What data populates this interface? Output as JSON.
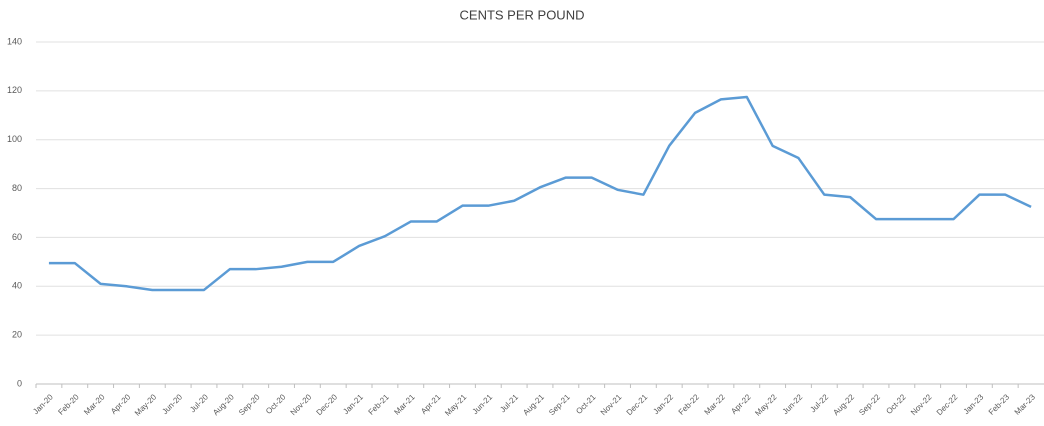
{
  "chart_data": {
    "type": "line",
    "title": "CENTS PER POUND",
    "categories": [
      "Jan-20",
      "Feb-20",
      "Mar-20",
      "Apr-20",
      "May-20",
      "Jun-20",
      "Jul-20",
      "Aug-20",
      "Sep-20",
      "Oct-20",
      "Nov-20",
      "Dec-20",
      "Jan-21",
      "Feb-21",
      "Mar-21",
      "Apr-21",
      "May-21",
      "Jun-21",
      "Jul-21",
      "Aug-21",
      "Sep-21",
      "Oct-21",
      "Nov-21",
      "Dec-21",
      "Jan-22",
      "Feb-22",
      "Mar-22",
      "Apr-22",
      "May-22",
      "Jun-22",
      "Jul-22",
      "Aug-22",
      "Sep-22",
      "Oct-22",
      "Nov-22",
      "Dec-22",
      "Jan-23",
      "Feb-23",
      "Mar-23"
    ],
    "values": [
      49.5,
      49.5,
      41,
      40,
      38.5,
      38.5,
      38.5,
      47,
      47,
      48,
      50,
      50,
      56.5,
      60.5,
      66.5,
      66.5,
      73,
      73,
      75,
      80.5,
      84.5,
      84.5,
      79.5,
      77.5,
      97.5,
      111,
      116.5,
      117.5,
      97.5,
      92.5,
      77.5,
      76.5,
      67.5,
      67.5,
      67.5,
      67.5,
      77.5,
      77.5,
      72.5
    ],
    "color": "#5b9bd5",
    "ylim": [
      0,
      140
    ],
    "yticks": [
      0,
      20,
      40,
      60,
      80,
      100,
      120,
      140
    ],
    "grid": true
  }
}
